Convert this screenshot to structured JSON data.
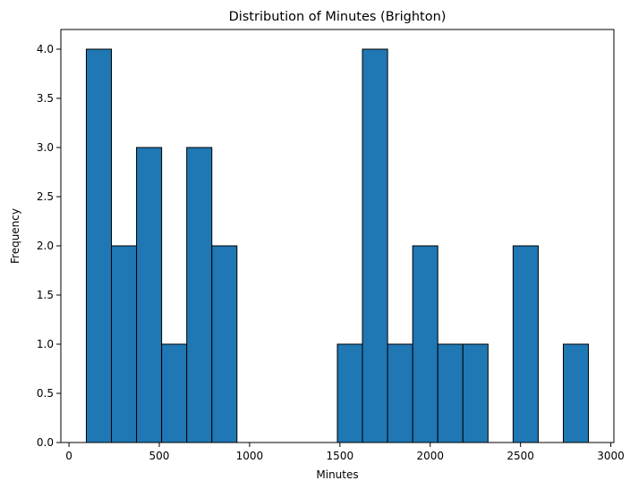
{
  "chart_data": {
    "type": "bar",
    "subtype": "histogram",
    "title": "Distribution of Minutes (Brighton)",
    "xlabel": "Minutes",
    "ylabel": "Frequency",
    "bins": [
      {
        "start": 96,
        "end": 235,
        "count": 4
      },
      {
        "start": 235,
        "end": 374,
        "count": 2
      },
      {
        "start": 374,
        "end": 513,
        "count": 3
      },
      {
        "start": 513,
        "end": 652,
        "count": 1
      },
      {
        "start": 652,
        "end": 791,
        "count": 3
      },
      {
        "start": 791,
        "end": 930,
        "count": 2
      },
      {
        "start": 930,
        "end": 1069,
        "count": 0
      },
      {
        "start": 1069,
        "end": 1208,
        "count": 0
      },
      {
        "start": 1208,
        "end": 1347,
        "count": 0
      },
      {
        "start": 1347,
        "end": 1486,
        "count": 0
      },
      {
        "start": 1486,
        "end": 1625,
        "count": 1
      },
      {
        "start": 1625,
        "end": 1764,
        "count": 4
      },
      {
        "start": 1764,
        "end": 1903,
        "count": 1
      },
      {
        "start": 1903,
        "end": 2042,
        "count": 2
      },
      {
        "start": 2042,
        "end": 2181,
        "count": 1
      },
      {
        "start": 2181,
        "end": 2320,
        "count": 1
      },
      {
        "start": 2320,
        "end": 2459,
        "count": 0
      },
      {
        "start": 2459,
        "end": 2598,
        "count": 2
      },
      {
        "start": 2598,
        "end": 2737,
        "count": 0
      },
      {
        "start": 2737,
        "end": 2876,
        "count": 1
      }
    ],
    "xlim": [
      -45,
      3017
    ],
    "ylim": [
      0,
      4.2
    ],
    "xticks": [
      0,
      500,
      1000,
      1500,
      2000,
      2500,
      3000
    ],
    "xtick_labels": [
      "0",
      "500",
      "1000",
      "1500",
      "2000",
      "2500",
      "3000"
    ],
    "yticks": [
      0,
      0.5,
      1.0,
      1.5,
      2.0,
      2.5,
      3.0,
      3.5,
      4.0
    ],
    "ytick_labels": [
      "0.0",
      "0.5",
      "1.0",
      "1.5",
      "2.0",
      "2.5",
      "3.0",
      "3.5",
      "4.0"
    ],
    "bar_color": "#1f77b4",
    "edge_color": "#000000",
    "grid": false,
    "legend": "none"
  }
}
